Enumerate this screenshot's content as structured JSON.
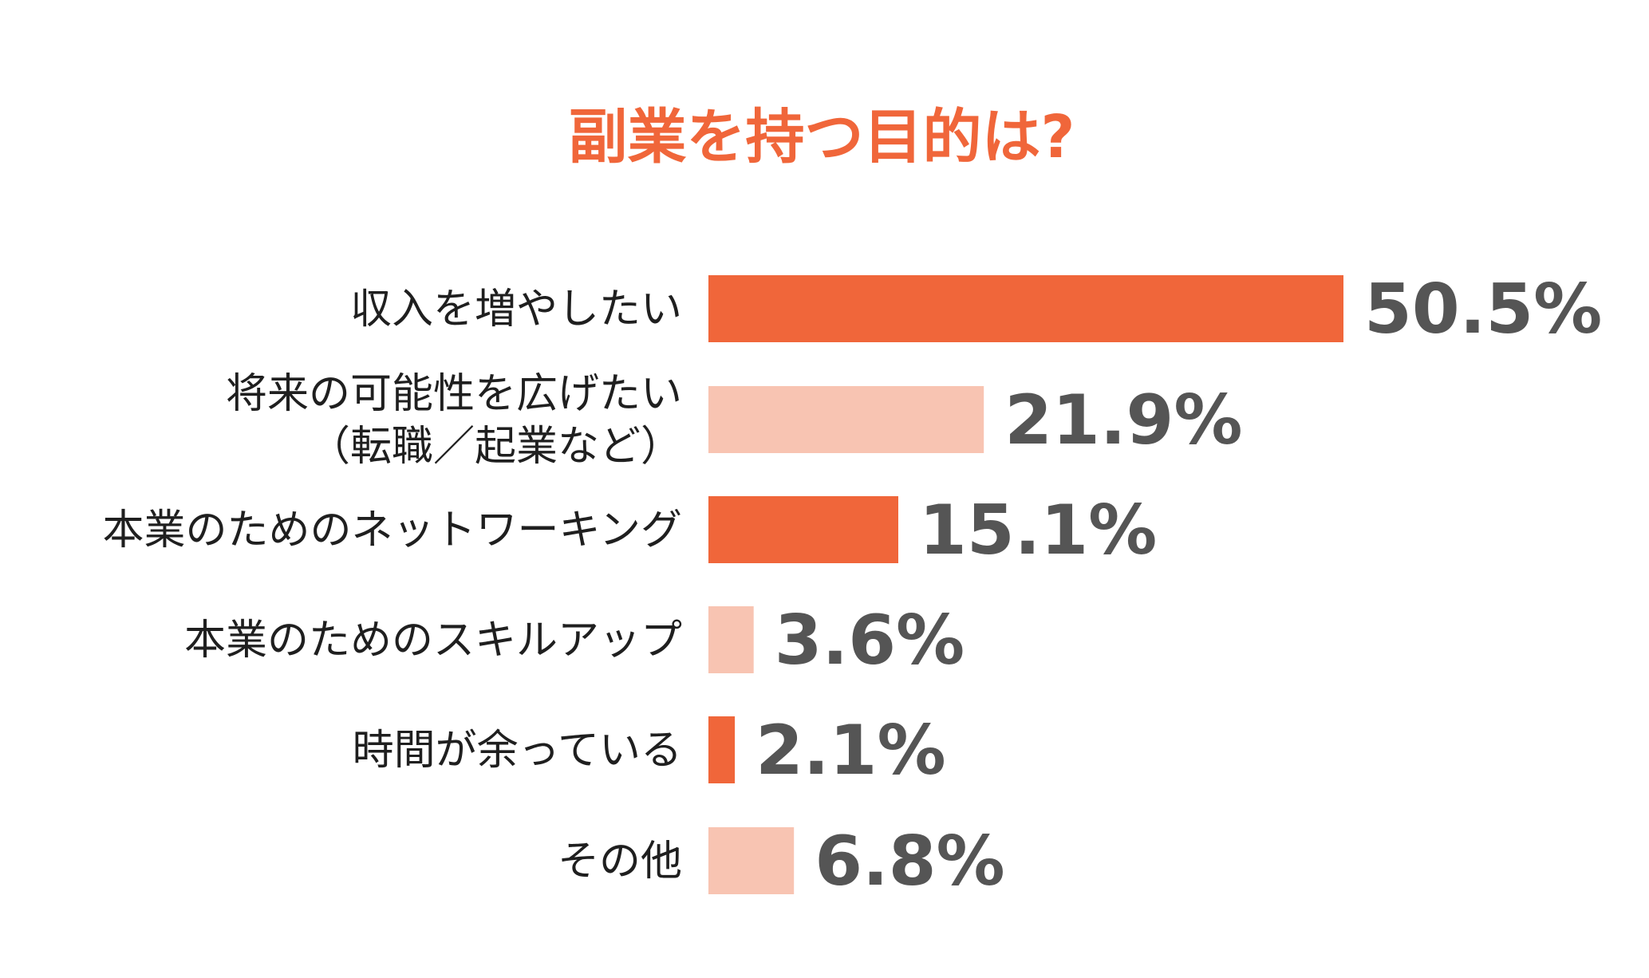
{
  "chart_data": {
    "type": "bar",
    "orientation": "horizontal",
    "title": "副業を持つ目的は?",
    "categories": [
      [
        "収入を増やしたい"
      ],
      [
        "将来の可能性を広げたい",
        "（転職／起業など）"
      ],
      [
        "本業のためのネットワーキング"
      ],
      [
        "本業のためのスキルアップ"
      ],
      [
        "時間が余っている"
      ],
      [
        "その他"
      ]
    ],
    "values": [
      50.5,
      21.9,
      15.1,
      3.6,
      2.1,
      6.8
    ],
    "value_labels": [
      "50.5%",
      "21.9%",
      "15.1%",
      "3.6%",
      "2.1%",
      "6.8%"
    ],
    "xlim": [
      0,
      50.5
    ],
    "unit": "%",
    "grid": false,
    "legend": "none"
  },
  "colors": {
    "title": "#f0663a",
    "bar_dark": "#f0663a",
    "bar_light": "#f8c4b2",
    "label_text": "#1f1f1f",
    "value_text": "#555555",
    "background": "#ffffff"
  }
}
